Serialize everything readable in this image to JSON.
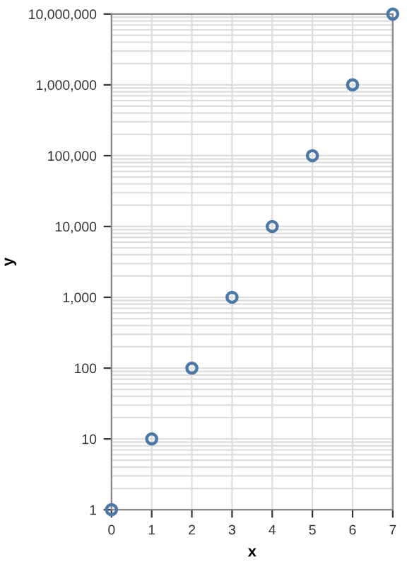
{
  "chart_data": {
    "type": "scatter",
    "xlabel": "x",
    "ylabel": "y",
    "x": [
      0,
      1,
      2,
      3,
      4,
      5,
      6,
      7
    ],
    "series": [
      {
        "color": "#4c78a8",
        "values": [
          1,
          10,
          100,
          1000,
          10000,
          100000,
          1000000,
          10000000
        ]
      }
    ],
    "log": "y",
    "xlim": [
      0,
      7
    ],
    "ylim": [
      1,
      10000000
    ],
    "xticks": [
      0,
      1,
      2,
      3,
      4,
      5,
      6,
      7
    ],
    "yticks": [
      {
        "value": 1,
        "label": "1"
      },
      {
        "value": 10,
        "label": "10"
      },
      {
        "value": 100,
        "label": "100"
      },
      {
        "value": 1000,
        "label": "1,000"
      },
      {
        "value": 10000,
        "label": "10,000"
      },
      {
        "value": 100000,
        "label": "100,000"
      },
      {
        "value": 1000000,
        "label": "1,000,000"
      },
      {
        "value": 10000000,
        "label": "10,000,000"
      }
    ],
    "grid": true,
    "marker": "circle"
  }
}
